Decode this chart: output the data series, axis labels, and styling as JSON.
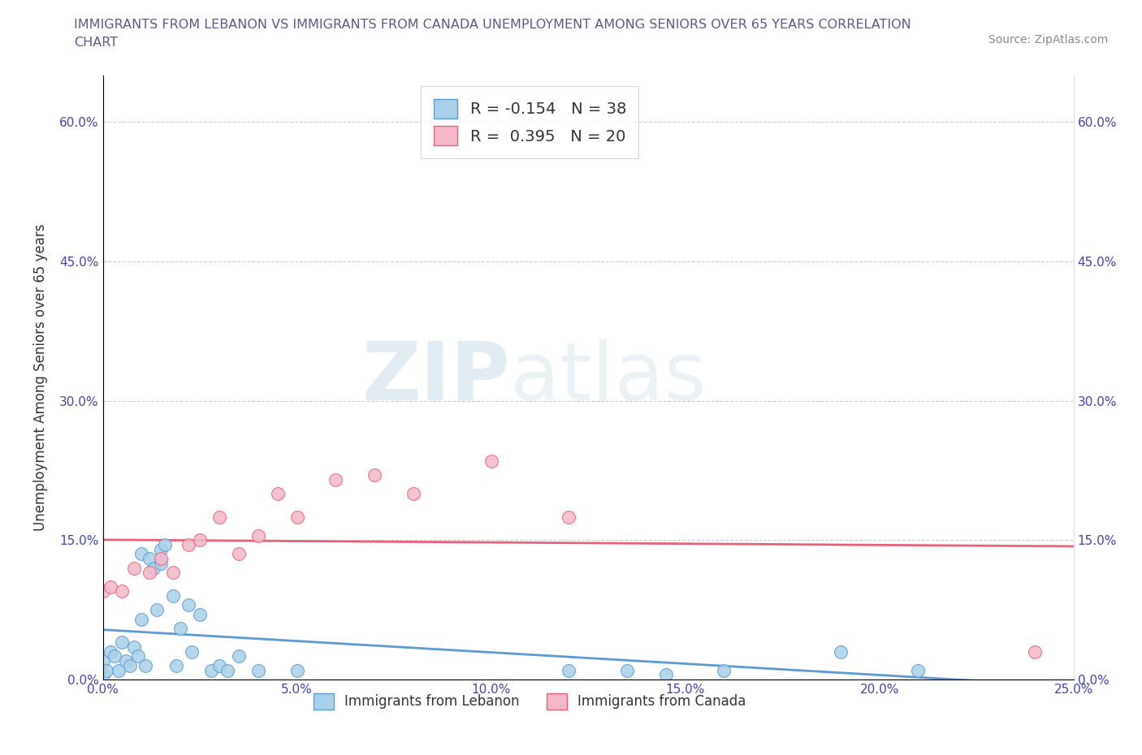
{
  "title_line1": "IMMIGRANTS FROM LEBANON VS IMMIGRANTS FROM CANADA UNEMPLOYMENT AMONG SENIORS OVER 65 YEARS CORRELATION",
  "title_line2": "CHART",
  "source": "Source: ZipAtlas.com",
  "ylabel": "Unemployment Among Seniors over 65 years",
  "color_lebanon": "#a8d0e8",
  "color_canada": "#f4b8c8",
  "color_line_lebanon": "#5b9bd5",
  "color_line_canada": "#e8607a",
  "legend1_label": "R = -0.154   N = 38",
  "legend2_label": "R =  0.395   N = 20",
  "legend_series1": "Immigrants from Lebanon",
  "legend_series2": "Immigrants from Canada",
  "watermark_zip": "ZIP",
  "watermark_atlas": "atlas",
  "background_color": "#ffffff",
  "grid_color": "#cccccc",
  "title_color": "#5a5a8a",
  "tick_color": "#4444aa",
  "ylabel_color": "#333333",
  "xlim": [
    0.0,
    0.25
  ],
  "ylim": [
    0.0,
    0.65
  ],
  "xtick_vals": [
    0.0,
    0.05,
    0.1,
    0.15,
    0.2,
    0.25
  ],
  "ytick_vals": [
    0.0,
    0.15,
    0.3,
    0.45,
    0.6
  ],
  "lebanon_x": [
    0.0,
    0.0,
    0.001,
    0.002,
    0.003,
    0.004,
    0.005,
    0.006,
    0.007,
    0.008,
    0.009,
    0.01,
    0.01,
    0.011,
    0.012,
    0.013,
    0.014,
    0.015,
    0.015,
    0.016,
    0.018,
    0.019,
    0.02,
    0.022,
    0.023,
    0.025,
    0.028,
    0.03,
    0.032,
    0.035,
    0.04,
    0.05,
    0.12,
    0.135,
    0.145,
    0.16,
    0.19,
    0.21
  ],
  "lebanon_y": [
    0.02,
    0.005,
    0.01,
    0.03,
    0.025,
    0.01,
    0.04,
    0.02,
    0.015,
    0.035,
    0.025,
    0.135,
    0.065,
    0.015,
    0.13,
    0.12,
    0.075,
    0.14,
    0.125,
    0.145,
    0.09,
    0.015,
    0.055,
    0.08,
    0.03,
    0.07,
    0.01,
    0.015,
    0.01,
    0.025,
    0.01,
    0.01,
    0.01,
    0.01,
    0.005,
    0.01,
    0.03,
    0.01
  ],
  "canada_x": [
    0.0,
    0.002,
    0.005,
    0.008,
    0.012,
    0.015,
    0.018,
    0.022,
    0.025,
    0.03,
    0.035,
    0.04,
    0.045,
    0.05,
    0.06,
    0.07,
    0.08,
    0.1,
    0.12,
    0.24
  ],
  "canada_y": [
    0.095,
    0.1,
    0.095,
    0.12,
    0.115,
    0.13,
    0.115,
    0.145,
    0.15,
    0.175,
    0.135,
    0.155,
    0.2,
    0.175,
    0.215,
    0.22,
    0.2,
    0.235,
    0.175,
    0.03
  ]
}
